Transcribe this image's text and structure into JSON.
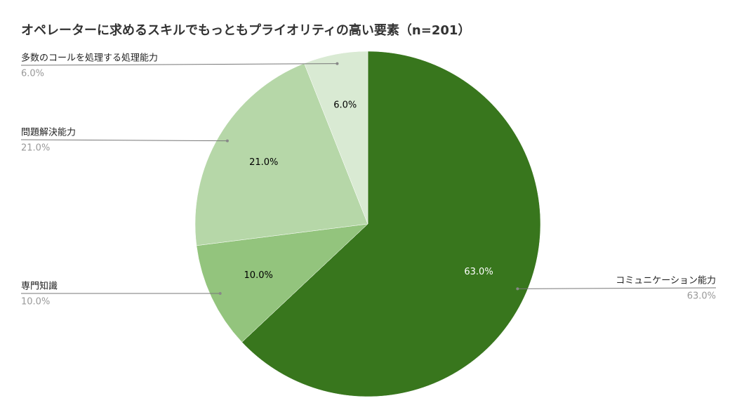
{
  "chart_data": {
    "type": "pie",
    "title": "オペレーターに求めるスキルでもっともプライオリティの高い要素（n=201）",
    "categories": [
      "コミュニケーション能力",
      "専門知識",
      "問題解決能力",
      "多数のコールを処理する処理能力"
    ],
    "values": [
      63,
      10,
      21,
      6
    ],
    "value_labels": [
      "63.0%",
      "10.0%",
      "21.0%",
      "6.0%"
    ],
    "colors": [
      "#38761d",
      "#93c47d",
      "#b6d7a8",
      "#d9ead3"
    ]
  }
}
